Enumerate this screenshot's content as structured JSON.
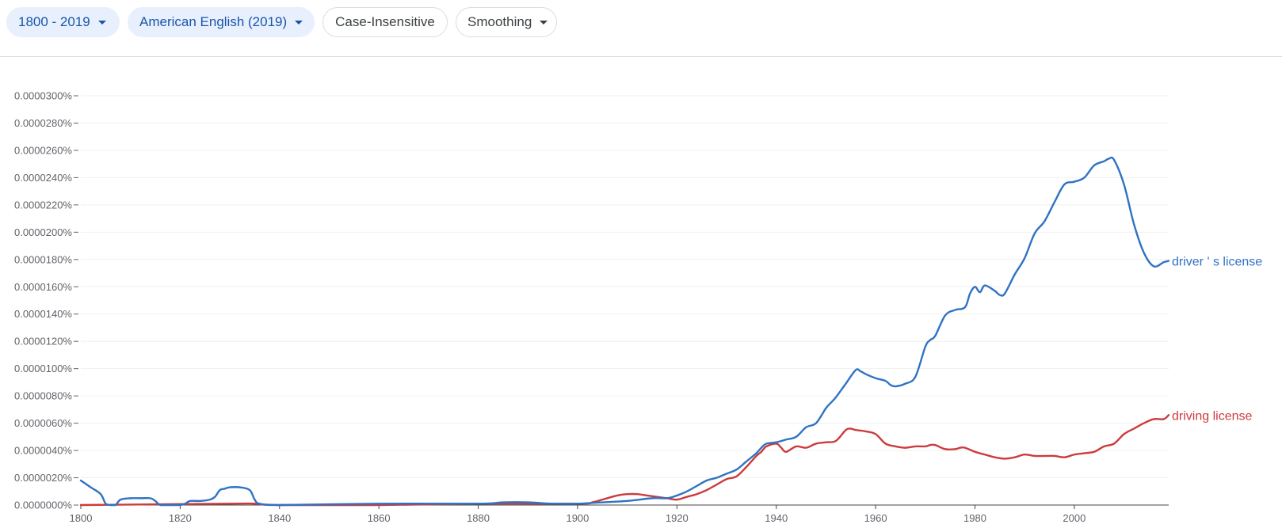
{
  "toolbar": {
    "years_label": "1800 - 2019",
    "corpus_label": "American English (2019)",
    "case_label": "Case-Insensitive",
    "smoothing_label": "Smoothing",
    "caret_icon": "chevron-down-icon"
  },
  "colors": {
    "series1": "#2f73c3",
    "series2": "#cc3b3d",
    "grid": "#f0f0f0",
    "axis": "#5f6368"
  },
  "chart_data": {
    "type": "line",
    "title": "",
    "xlabel": "",
    "ylabel": "",
    "xlim": [
      1800,
      2019
    ],
    "ylim": [
      0,
      3e-05
    ],
    "y_tick_values": [
      0,
      2e-06,
      4e-06,
      6e-06,
      8e-06,
      1e-05,
      1.2e-05,
      1.4e-05,
      1.6e-05,
      1.8e-05,
      2e-05,
      2.2e-05,
      2.4e-05,
      2.6e-05,
      2.8e-05,
      3e-05
    ],
    "y_tick_labels": [
      "0.0000000%",
      "0.0000020%",
      "0.0000040%",
      "0.0000060%",
      "0.0000080%",
      "0.0000100%",
      "0.0000120%",
      "0.0000140%",
      "0.0000160%",
      "0.0000180%",
      "0.0000200%",
      "0.0000220%",
      "0.0000240%",
      "0.0000260%",
      "0.0000280%",
      "0.0000300%"
    ],
    "x_tick_values": [
      1800,
      1820,
      1840,
      1860,
      1880,
      1900,
      1920,
      1940,
      1960,
      1980,
      2000
    ],
    "x_tick_labels": [
      "1800",
      "1820",
      "1840",
      "1860",
      "1880",
      "1900",
      "1920",
      "1940",
      "1960",
      "1980",
      "2000"
    ],
    "series": [
      {
        "name": "driver ' s license",
        "x": [
          1800,
          1802,
          1804,
          1805,
          1806,
          1807,
          1808,
          1810,
          1812,
          1814,
          1815,
          1816,
          1818,
          1820,
          1821,
          1822,
          1824,
          1826,
          1827,
          1828,
          1829,
          1830,
          1832,
          1834,
          1835,
          1836,
          1840,
          1860,
          1880,
          1885,
          1890,
          1895,
          1900,
          1905,
          1910,
          1915,
          1918,
          1920,
          1922,
          1924,
          1926,
          1928,
          1930,
          1932,
          1934,
          1936,
          1937,
          1938,
          1940,
          1942,
          1944,
          1946,
          1948,
          1950,
          1951,
          1952,
          1954,
          1956,
          1957,
          1958,
          1960,
          1962,
          1963,
          1964,
          1966,
          1968,
          1970,
          1971,
          1972,
          1974,
          1976,
          1978,
          1979,
          1980,
          1981,
          1982,
          1984,
          1985,
          1986,
          1988,
          1990,
          1992,
          1994,
          1996,
          1998,
          2000,
          2002,
          2004,
          2006,
          2007,
          2008,
          2010,
          2012,
          2014,
          2016,
          2018,
          2019
        ],
        "values": [
          1.8e-06,
          1.3e-06,
          8e-07,
          1e-07,
          0.0,
          0.0,
          4e-07,
          5e-07,
          5e-07,
          5e-07,
          3e-07,
          0.0,
          0.0,
          0.0,
          1e-07,
          3e-07,
          3e-07,
          4e-07,
          6e-07,
          1.1e-06,
          1.2e-06,
          1.3e-06,
          1.3e-06,
          1.1e-06,
          4e-07,
          1e-07,
          0.0,
          1e-07,
          1e-07,
          2e-07,
          2e-07,
          1e-07,
          1e-07,
          2e-07,
          3e-07,
          5e-07,
          5e-07,
          7e-07,
          1e-06,
          1.4e-06,
          1.8e-06,
          2e-06,
          2.3e-06,
          2.6e-06,
          3.2e-06,
          3.8e-06,
          4.2e-06,
          4.5e-06,
          4.6e-06,
          4.8e-06,
          5e-06,
          5.7e-06,
          6e-06,
          7.1e-06,
          7.5e-06,
          7.9e-06,
          8.9e-06,
          9.9e-06,
          9.8e-06,
          9.6e-06,
          9.3e-06,
          9.1e-06,
          8.8e-06,
          8.7e-06,
          8.9e-06,
          9.4e-06,
          1.16e-05,
          1.21e-05,
          1.24e-05,
          1.39e-05,
          1.43e-05,
          1.45e-05,
          1.55e-05,
          1.6e-05,
          1.56e-05,
          1.61e-05,
          1.57e-05,
          1.54e-05,
          1.55e-05,
          1.69e-05,
          1.81e-05,
          1.99e-05,
          2.08e-05,
          2.22e-05,
          2.35e-05,
          2.37e-05,
          2.4e-05,
          2.49e-05,
          2.52e-05,
          2.54e-05,
          2.53e-05,
          2.35e-05,
          2.06e-05,
          1.85e-05,
          1.75e-05,
          1.78e-05,
          1.79e-05
        ],
        "label_position": "end"
      },
      {
        "name": "driving license",
        "x": [
          1800,
          1830,
          1835,
          1840,
          1860,
          1880,
          1900,
          1903,
          1905,
          1908,
          1910,
          1912,
          1914,
          1916,
          1918,
          1920,
          1922,
          1924,
          1926,
          1928,
          1930,
          1932,
          1934,
          1936,
          1937,
          1938,
          1940,
          1941,
          1942,
          1944,
          1946,
          1948,
          1950,
          1952,
          1954,
          1955,
          1956,
          1958,
          1960,
          1962,
          1964,
          1966,
          1968,
          1970,
          1971,
          1972,
          1974,
          1976,
          1977,
          1978,
          1980,
          1982,
          1984,
          1986,
          1988,
          1990,
          1992,
          1994,
          1996,
          1998,
          2000,
          2002,
          2004,
          2006,
          2008,
          2010,
          2012,
          2014,
          2016,
          2018,
          2019
        ],
        "values": [
          0.0,
          1e-07,
          1e-07,
          0.0,
          0.0,
          1e-07,
          1e-07,
          2e-07,
          4e-07,
          7e-07,
          8e-07,
          8e-07,
          7e-07,
          6e-07,
          5e-07,
          4e-07,
          6e-07,
          8e-07,
          1.1e-06,
          1.5e-06,
          1.9e-06,
          2.1e-06,
          2.8e-06,
          3.6e-06,
          3.9e-06,
          4.3e-06,
          4.5e-06,
          4.2e-06,
          3.9e-06,
          4.3e-06,
          4.2e-06,
          4.5e-06,
          4.6e-06,
          4.7e-06,
          5.5e-06,
          5.6e-06,
          5.5e-06,
          5.4e-06,
          5.2e-06,
          4.5e-06,
          4.3e-06,
          4.2e-06,
          4.3e-06,
          4.3e-06,
          4.4e-06,
          4.4e-06,
          4.1e-06,
          4.1e-06,
          4.2e-06,
          4.2e-06,
          3.9e-06,
          3.7e-06,
          3.5e-06,
          3.4e-06,
          3.5e-06,
          3.7e-06,
          3.6e-06,
          3.6e-06,
          3.6e-06,
          3.5e-06,
          3.7e-06,
          3.8e-06,
          3.9e-06,
          4.3e-06,
          4.5e-06,
          5.2e-06,
          5.6e-06,
          6e-06,
          6.3e-06,
          6.3e-06,
          6.6e-06
        ],
        "label_position": "end"
      }
    ],
    "grid": true,
    "legend": "labels at line ends (right)"
  }
}
